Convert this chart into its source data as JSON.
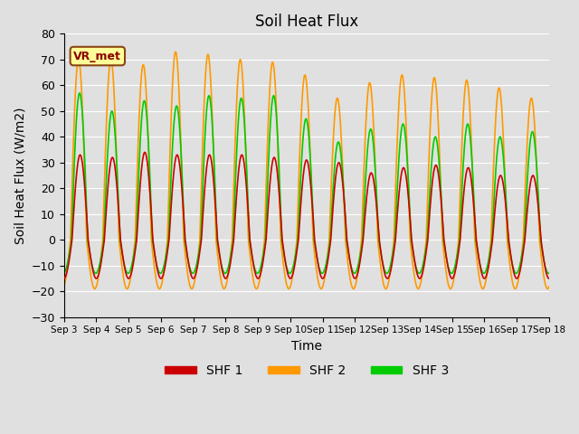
{
  "title": "Soil Heat Flux",
  "xlabel": "Time",
  "ylabel": "Soil Heat Flux (W/m2)",
  "ylim": [
    -30,
    80
  ],
  "yticks": [
    -30,
    -20,
    -10,
    0,
    10,
    20,
    30,
    40,
    50,
    60,
    70,
    80
  ],
  "colors": {
    "SHF 1": "#cc0000",
    "SHF 2": "#ff9900",
    "SHF 3": "#00cc00"
  },
  "background_color": "#e0e0e0",
  "plot_bg_color": "#e0e0e0",
  "grid_color": "#ffffff",
  "annotation_text": "VR_met",
  "annotation_box_color": "#ffff99",
  "annotation_border_color": "#8B4513",
  "num_days": 15,
  "line_width": 1.2,
  "legend_labels": [
    "SHF 1",
    "SHF 2",
    "SHF 3"
  ],
  "xtick_labels": [
    "Sep 3",
    "Sep 4",
    "Sep 5",
    "Sep 6",
    "Sep 7",
    "Sep 8",
    "Sep 9",
    "Sep 10",
    "Sep 11",
    "Sep 12",
    "Sep 13",
    "Sep 14",
    "Sep 15",
    "Sep 16",
    "Sep 17",
    "Sep 18"
  ],
  "shf1_amps": [
    33,
    32,
    34,
    33,
    33,
    33,
    32,
    31,
    30,
    26,
    28,
    29,
    28,
    25,
    25
  ],
  "shf2_amps": [
    70,
    70,
    68,
    73,
    72,
    70,
    69,
    64,
    55,
    61,
    64,
    63,
    62,
    59,
    55
  ],
  "shf3_amps": [
    57,
    50,
    54,
    52,
    56,
    55,
    56,
    47,
    38,
    43,
    45,
    40,
    45,
    40,
    42
  ],
  "shf1_night": -15,
  "shf2_night": -19,
  "shf3_night": -13,
  "shf1_phase": 0.0,
  "shf2_phase": 0.3,
  "shf3_phase": 0.1
}
